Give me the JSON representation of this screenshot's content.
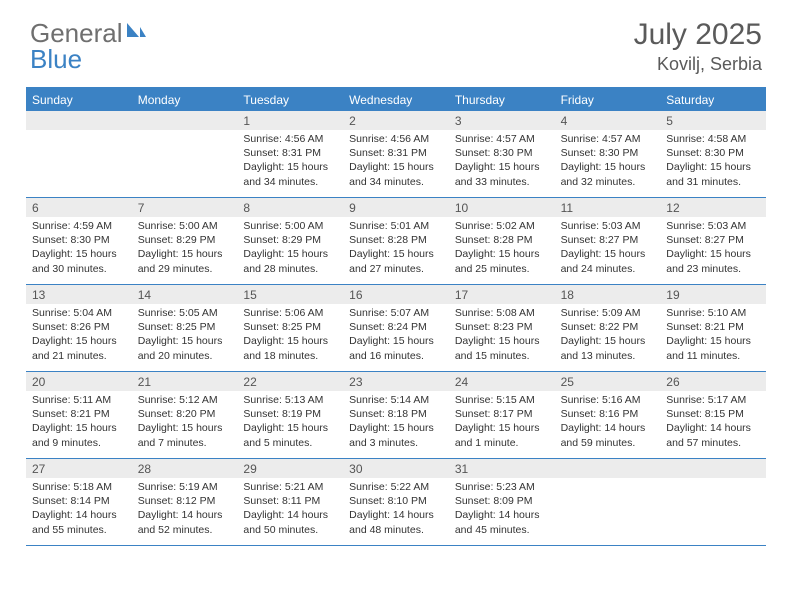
{
  "brand": {
    "part1": "General",
    "part2": "Blue"
  },
  "title": "July 2025",
  "location": "Kovilj, Serbia",
  "weekdays": [
    "Sunday",
    "Monday",
    "Tuesday",
    "Wednesday",
    "Thursday",
    "Friday",
    "Saturday"
  ],
  "colors": {
    "accent": "#3b82c4",
    "header_text": "#5a5a5a",
    "logo_gray": "#6f6f6f",
    "daynum_bg": "#ececec",
    "text": "#333333",
    "bg": "#ffffff"
  },
  "typography": {
    "title_fontsize": 30,
    "location_fontsize": 18,
    "logo_fontsize": 26,
    "weekday_fontsize": 12,
    "daynum_fontsize": 12,
    "detail_fontsize": 10.5
  },
  "layout": {
    "columns": 7,
    "rows": 5,
    "cell_min_height": 86
  },
  "weeks": [
    [
      {
        "day": "",
        "sunrise": "",
        "sunset": "",
        "daylight": ""
      },
      {
        "day": "",
        "sunrise": "",
        "sunset": "",
        "daylight": ""
      },
      {
        "day": "1",
        "sunrise": "Sunrise: 4:56 AM",
        "sunset": "Sunset: 8:31 PM",
        "daylight": "Daylight: 15 hours and 34 minutes."
      },
      {
        "day": "2",
        "sunrise": "Sunrise: 4:56 AM",
        "sunset": "Sunset: 8:31 PM",
        "daylight": "Daylight: 15 hours and 34 minutes."
      },
      {
        "day": "3",
        "sunrise": "Sunrise: 4:57 AM",
        "sunset": "Sunset: 8:30 PM",
        "daylight": "Daylight: 15 hours and 33 minutes."
      },
      {
        "day": "4",
        "sunrise": "Sunrise: 4:57 AM",
        "sunset": "Sunset: 8:30 PM",
        "daylight": "Daylight: 15 hours and 32 minutes."
      },
      {
        "day": "5",
        "sunrise": "Sunrise: 4:58 AM",
        "sunset": "Sunset: 8:30 PM",
        "daylight": "Daylight: 15 hours and 31 minutes."
      }
    ],
    [
      {
        "day": "6",
        "sunrise": "Sunrise: 4:59 AM",
        "sunset": "Sunset: 8:30 PM",
        "daylight": "Daylight: 15 hours and 30 minutes."
      },
      {
        "day": "7",
        "sunrise": "Sunrise: 5:00 AM",
        "sunset": "Sunset: 8:29 PM",
        "daylight": "Daylight: 15 hours and 29 minutes."
      },
      {
        "day": "8",
        "sunrise": "Sunrise: 5:00 AM",
        "sunset": "Sunset: 8:29 PM",
        "daylight": "Daylight: 15 hours and 28 minutes."
      },
      {
        "day": "9",
        "sunrise": "Sunrise: 5:01 AM",
        "sunset": "Sunset: 8:28 PM",
        "daylight": "Daylight: 15 hours and 27 minutes."
      },
      {
        "day": "10",
        "sunrise": "Sunrise: 5:02 AM",
        "sunset": "Sunset: 8:28 PM",
        "daylight": "Daylight: 15 hours and 25 minutes."
      },
      {
        "day": "11",
        "sunrise": "Sunrise: 5:03 AM",
        "sunset": "Sunset: 8:27 PM",
        "daylight": "Daylight: 15 hours and 24 minutes."
      },
      {
        "day": "12",
        "sunrise": "Sunrise: 5:03 AM",
        "sunset": "Sunset: 8:27 PM",
        "daylight": "Daylight: 15 hours and 23 minutes."
      }
    ],
    [
      {
        "day": "13",
        "sunrise": "Sunrise: 5:04 AM",
        "sunset": "Sunset: 8:26 PM",
        "daylight": "Daylight: 15 hours and 21 minutes."
      },
      {
        "day": "14",
        "sunrise": "Sunrise: 5:05 AM",
        "sunset": "Sunset: 8:25 PM",
        "daylight": "Daylight: 15 hours and 20 minutes."
      },
      {
        "day": "15",
        "sunrise": "Sunrise: 5:06 AM",
        "sunset": "Sunset: 8:25 PM",
        "daylight": "Daylight: 15 hours and 18 minutes."
      },
      {
        "day": "16",
        "sunrise": "Sunrise: 5:07 AM",
        "sunset": "Sunset: 8:24 PM",
        "daylight": "Daylight: 15 hours and 16 minutes."
      },
      {
        "day": "17",
        "sunrise": "Sunrise: 5:08 AM",
        "sunset": "Sunset: 8:23 PM",
        "daylight": "Daylight: 15 hours and 15 minutes."
      },
      {
        "day": "18",
        "sunrise": "Sunrise: 5:09 AM",
        "sunset": "Sunset: 8:22 PM",
        "daylight": "Daylight: 15 hours and 13 minutes."
      },
      {
        "day": "19",
        "sunrise": "Sunrise: 5:10 AM",
        "sunset": "Sunset: 8:21 PM",
        "daylight": "Daylight: 15 hours and 11 minutes."
      }
    ],
    [
      {
        "day": "20",
        "sunrise": "Sunrise: 5:11 AM",
        "sunset": "Sunset: 8:21 PM",
        "daylight": "Daylight: 15 hours and 9 minutes."
      },
      {
        "day": "21",
        "sunrise": "Sunrise: 5:12 AM",
        "sunset": "Sunset: 8:20 PM",
        "daylight": "Daylight: 15 hours and 7 minutes."
      },
      {
        "day": "22",
        "sunrise": "Sunrise: 5:13 AM",
        "sunset": "Sunset: 8:19 PM",
        "daylight": "Daylight: 15 hours and 5 minutes."
      },
      {
        "day": "23",
        "sunrise": "Sunrise: 5:14 AM",
        "sunset": "Sunset: 8:18 PM",
        "daylight": "Daylight: 15 hours and 3 minutes."
      },
      {
        "day": "24",
        "sunrise": "Sunrise: 5:15 AM",
        "sunset": "Sunset: 8:17 PM",
        "daylight": "Daylight: 15 hours and 1 minute."
      },
      {
        "day": "25",
        "sunrise": "Sunrise: 5:16 AM",
        "sunset": "Sunset: 8:16 PM",
        "daylight": "Daylight: 14 hours and 59 minutes."
      },
      {
        "day": "26",
        "sunrise": "Sunrise: 5:17 AM",
        "sunset": "Sunset: 8:15 PM",
        "daylight": "Daylight: 14 hours and 57 minutes."
      }
    ],
    [
      {
        "day": "27",
        "sunrise": "Sunrise: 5:18 AM",
        "sunset": "Sunset: 8:14 PM",
        "daylight": "Daylight: 14 hours and 55 minutes."
      },
      {
        "day": "28",
        "sunrise": "Sunrise: 5:19 AM",
        "sunset": "Sunset: 8:12 PM",
        "daylight": "Daylight: 14 hours and 52 minutes."
      },
      {
        "day": "29",
        "sunrise": "Sunrise: 5:21 AM",
        "sunset": "Sunset: 8:11 PM",
        "daylight": "Daylight: 14 hours and 50 minutes."
      },
      {
        "day": "30",
        "sunrise": "Sunrise: 5:22 AM",
        "sunset": "Sunset: 8:10 PM",
        "daylight": "Daylight: 14 hours and 48 minutes."
      },
      {
        "day": "31",
        "sunrise": "Sunrise: 5:23 AM",
        "sunset": "Sunset: 8:09 PM",
        "daylight": "Daylight: 14 hours and 45 minutes."
      },
      {
        "day": "",
        "sunrise": "",
        "sunset": "",
        "daylight": ""
      },
      {
        "day": "",
        "sunrise": "",
        "sunset": "",
        "daylight": ""
      }
    ]
  ]
}
